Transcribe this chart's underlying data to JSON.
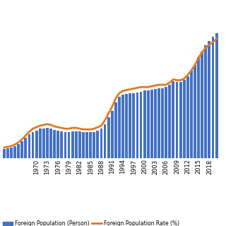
{
  "years": [
    1961,
    1962,
    1963,
    1964,
    1965,
    1966,
    1967,
    1968,
    1969,
    1970,
    1971,
    1972,
    1973,
    1974,
    1975,
    1976,
    1977,
    1978,
    1979,
    1980,
    1981,
    1982,
    1983,
    1984,
    1985,
    1986,
    1987,
    1988,
    1989,
    1990,
    1991,
    1992,
    1993,
    1994,
    1995,
    1996,
    1997,
    1998,
    1999,
    2000,
    2001,
    2002,
    2003,
    2004,
    2005,
    2006,
    2007,
    2008,
    2009,
    2010,
    2011,
    2012,
    2013,
    2014,
    2015,
    2016,
    2017,
    2018,
    2019,
    2020
  ],
  "foreign_pop": [
    102000,
    108000,
    117000,
    131000,
    157000,
    188000,
    226000,
    268000,
    295000,
    311000,
    330000,
    336000,
    340000,
    335000,
    320000,
    310000,
    300000,
    295000,
    292000,
    298000,
    302000,
    298000,
    292000,
    290000,
    293000,
    297000,
    310000,
    330000,
    380000,
    456000,
    534000,
    623000,
    689000,
    713000,
    724000,
    728000,
    733000,
    737000,
    748000,
    758000,
    764000,
    769000,
    780000,
    784000,
    788000,
    798000,
    826000,
    862000,
    860000,
    858000,
    878000,
    920000,
    980000,
    1044000,
    1130000,
    1200000,
    1267000,
    1320000,
    1360000,
    1400000
  ],
  "foreign_rate": [
    1.4,
    1.5,
    1.6,
    1.8,
    2.1,
    2.5,
    3.0,
    3.5,
    3.9,
    4.1,
    4.3,
    4.4,
    4.5,
    4.4,
    4.2,
    4.1,
    4.0,
    3.9,
    3.9,
    4.0,
    4.0,
    3.9,
    3.8,
    3.8,
    3.8,
    3.9,
    4.1,
    4.3,
    5.0,
    5.9,
    6.8,
    7.9,
    8.6,
    8.9,
    9.0,
    9.1,
    9.2,
    9.3,
    9.4,
    9.4,
    9.4,
    9.5,
    9.6,
    9.7,
    9.7,
    9.7,
    10.0,
    10.4,
    10.3,
    10.3,
    10.5,
    11.0,
    11.6,
    12.3,
    13.3,
    14.0,
    14.6,
    15.0,
    15.3,
    15.8
  ],
  "bar_color": "#4472C4",
  "line_color": "#E87722",
  "background_color": "#FFFFFF",
  "grid_color": "#DDDDDD",
  "legend_bar_label": "Foreign Population (Person)",
  "legend_line_label": "Foreign Population Rate (%)",
  "figsize": [
    3.2,
    3.2
  ],
  "dpi": 100,
  "tick_years": [
    1970,
    1973,
    1976,
    1979,
    1982,
    1985,
    1988,
    1991,
    1994,
    1997,
    2000,
    2003,
    2006,
    2009,
    2012,
    2015,
    2018
  ]
}
